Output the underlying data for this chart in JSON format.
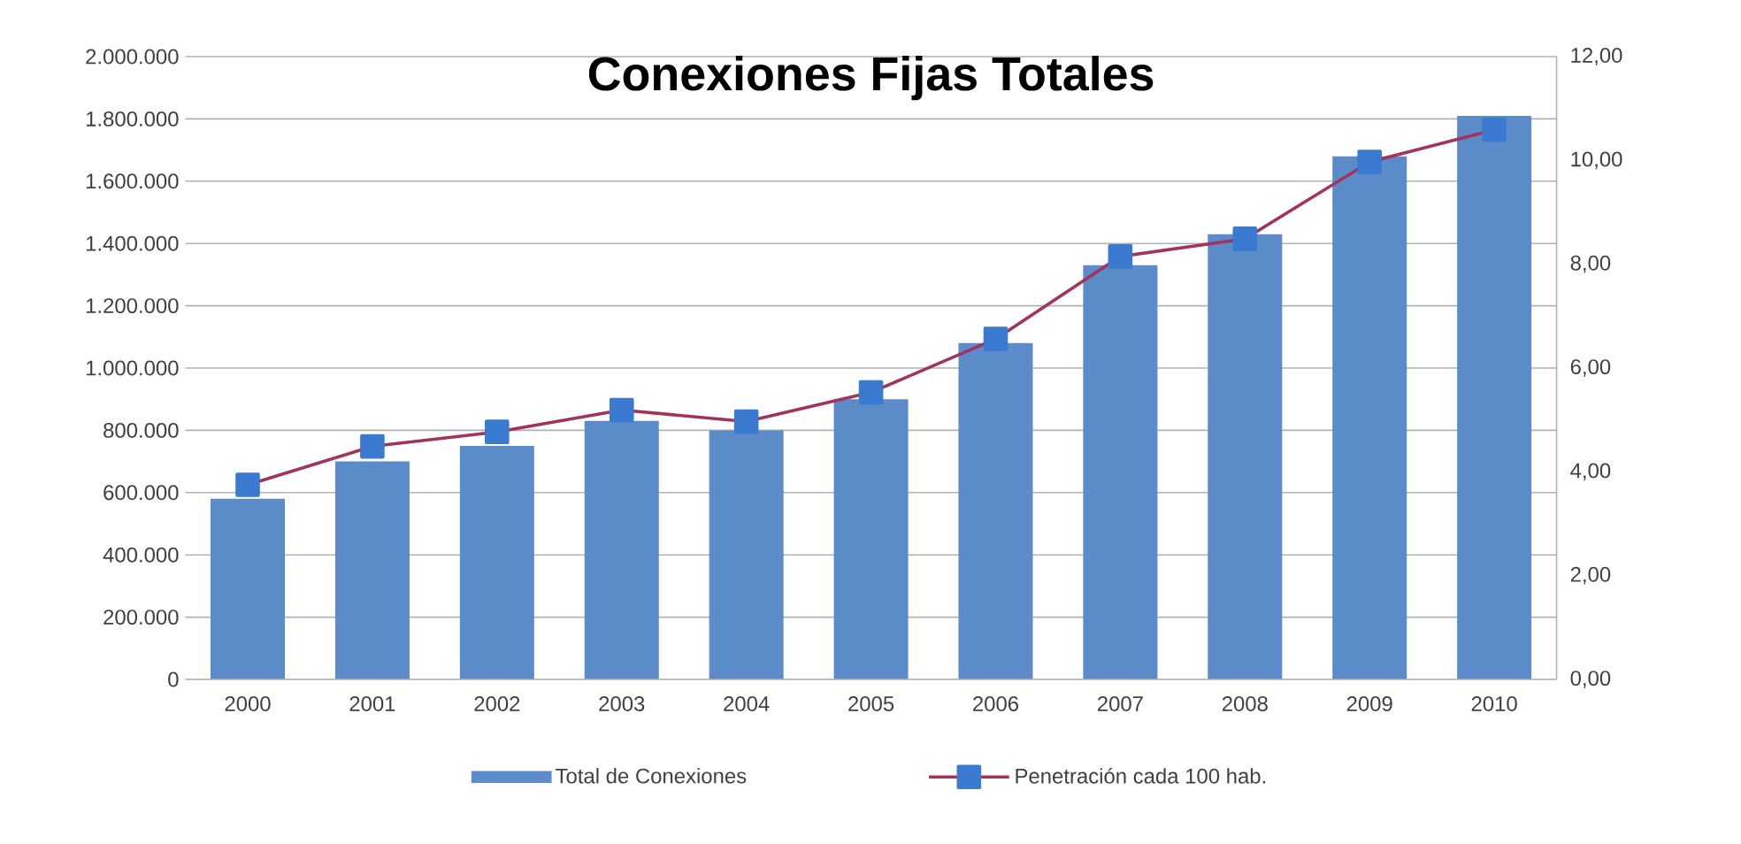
{
  "chart_data": {
    "type": "bar",
    "title": "Conexiones Fijas Totales",
    "categories": [
      "2000",
      "2001",
      "2002",
      "2003",
      "2004",
      "2005",
      "2006",
      "2007",
      "2008",
      "2009",
      "2010"
    ],
    "series": [
      {
        "name": "Total de Conexiones",
        "color": "#5b8bc8",
        "values": [
          580000,
          700000,
          750000,
          830000,
          800000,
          900000,
          1080000,
          1330000,
          1430000,
          1680000,
          1810000
        ]
      },
      {
        "name": "Penetración cada 100 hab.",
        "type": "line",
        "axis": "y2",
        "color": "#a3325c",
        "marker": "square",
        "values": [
          3.75,
          4.49,
          4.77,
          5.19,
          4.97,
          5.53,
          6.56,
          8.15,
          8.49,
          9.97,
          10.59
        ]
      }
    ],
    "ylim": [
      0,
      2000000
    ],
    "yticks": [
      {
        "value": 0,
        "label": "0"
      },
      {
        "value": 200000,
        "label": "200.000"
      },
      {
        "value": 400000,
        "label": "400.000"
      },
      {
        "value": 600000,
        "label": "600.000"
      },
      {
        "value": 800000,
        "label": "800.000"
      },
      {
        "value": 1000000,
        "label": "1.000.000"
      },
      {
        "value": 1200000,
        "label": "1.200.000"
      },
      {
        "value": 1400000,
        "label": "1.400.000"
      },
      {
        "value": 1600000,
        "label": "1.600.000"
      },
      {
        "value": 1800000,
        "label": "1.800.000"
      },
      {
        "value": 2000000,
        "label": "2.000.000"
      }
    ],
    "y2lim": [
      0,
      12
    ],
    "y2ticks": [
      {
        "value": 0,
        "label": "0,00"
      },
      {
        "value": 2,
        "label": "2,00"
      },
      {
        "value": 4,
        "label": "4,00"
      },
      {
        "value": 6,
        "label": "6,00"
      },
      {
        "value": 8,
        "label": "8,00"
      },
      {
        "value": 10,
        "label": "10,00"
      },
      {
        "value": 12,
        "label": "12,00"
      }
    ],
    "grid": "y",
    "legend": "bottom"
  }
}
